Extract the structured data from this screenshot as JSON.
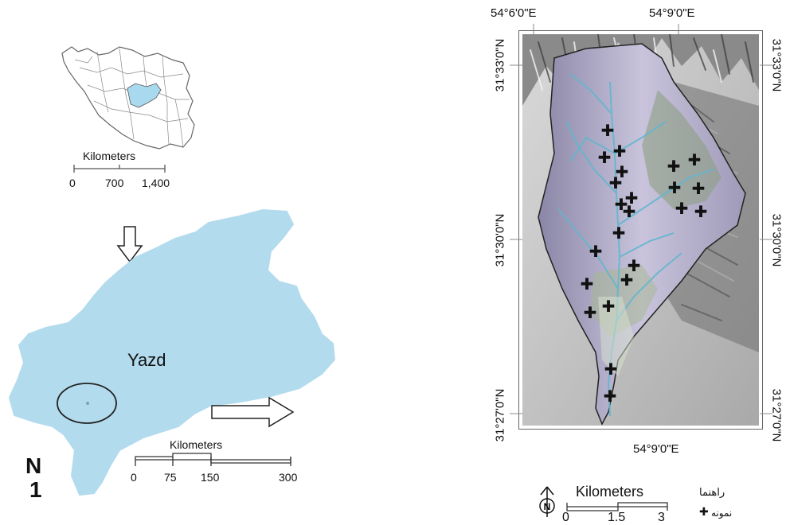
{
  "iran_inset": {
    "scale_title": "Kilometers",
    "ticks": [
      "0",
      "700",
      "1,400"
    ]
  },
  "yazd_map": {
    "province_label": "Yazd",
    "scale_title": "Kilometers",
    "ticks": [
      "0",
      "75",
      "150",
      "300"
    ],
    "north_letter": "N",
    "north_digit": "1"
  },
  "study_area": {
    "top_lon": [
      "54°6'0\"E",
      "54°9'0\"E"
    ],
    "bottom_lon": "54°9'0\"E",
    "left_lat": [
      "31°33'0\"N",
      "31°30'0\"N",
      "31°27'0\"N"
    ],
    "right_lat": [
      "31°33'0\"N",
      "31°30'0\"N",
      "31°27'0\"N"
    ],
    "scale_title": "Kilometers",
    "ticks": [
      "0",
      "1.5",
      "3"
    ],
    "legend_title": "راهنما",
    "legend_item": "نمونه",
    "legend_symbol": "✚",
    "colors": {
      "catchment": "#b9b4cf",
      "stream": "#63b6cf",
      "outline": "#222222"
    }
  }
}
